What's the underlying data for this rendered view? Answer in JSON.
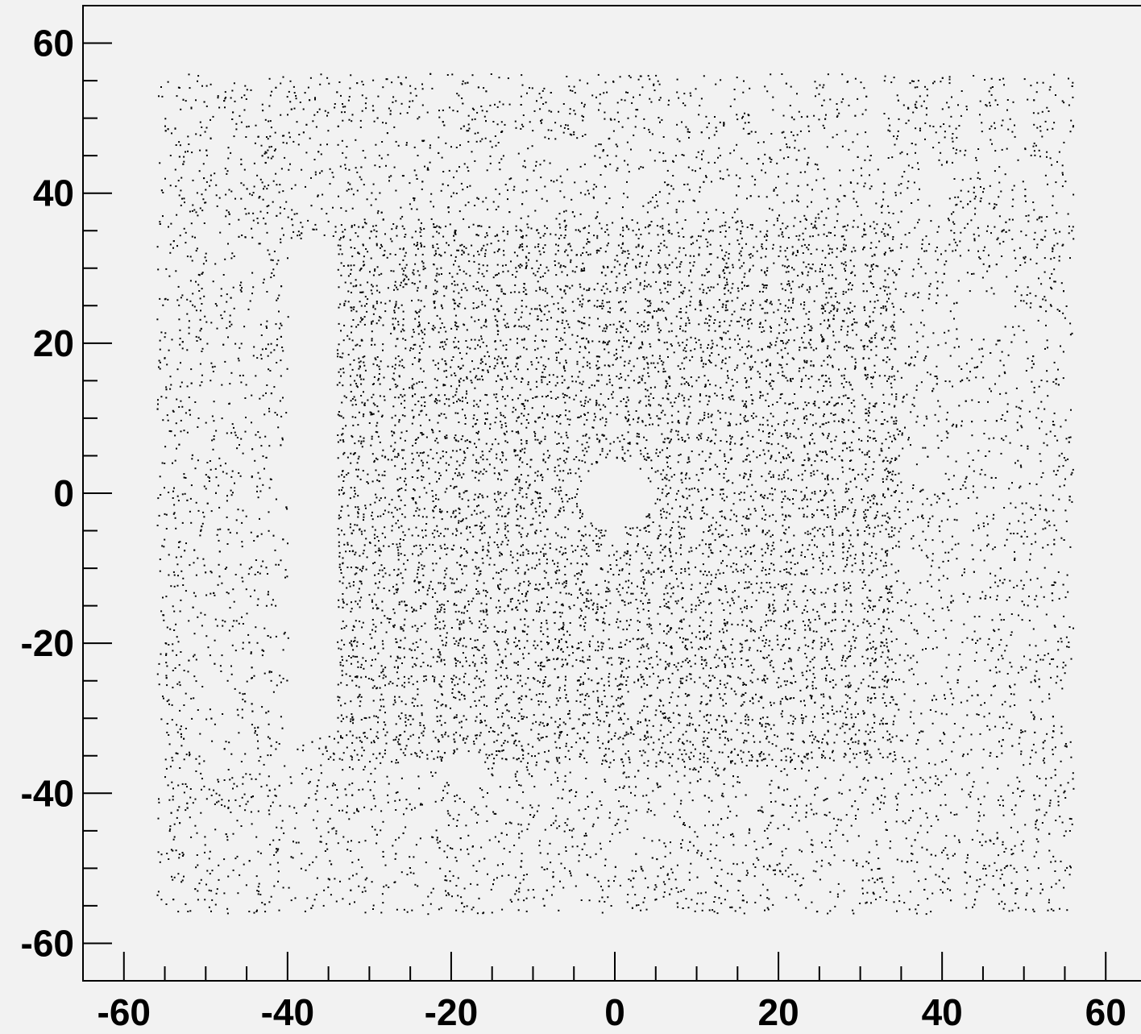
{
  "chart_data": {
    "type": "scatter",
    "title": "",
    "xlabel": "",
    "ylabel": "",
    "xlim": [
      -65,
      65
    ],
    "ylim": [
      -65,
      65
    ],
    "x_ticks": [
      -60,
      -40,
      -20,
      0,
      20,
      40,
      60
    ],
    "y_ticks": [
      -60,
      -40,
      -20,
      0,
      20,
      40,
      60
    ],
    "x_tick_labels": [
      "-60",
      "-40",
      "-20",
      "0",
      "20",
      "40",
      "60"
    ],
    "y_tick_labels": [
      "-60",
      "-40",
      "-20",
      "0",
      "20",
      "40",
      "60"
    ],
    "minor_tick_step": 5,
    "grid": false,
    "legend": "none",
    "marker_color": "#000000",
    "background_color": "#f2f2f2",
    "regions": {
      "outer_band": {
        "x": [
          -56,
          56
        ],
        "y": [
          -56,
          56
        ],
        "relative_density": 0.22
      },
      "dense_grid_core": {
        "x": [
          -34,
          34
        ],
        "y": [
          -35,
          35
        ],
        "relative_density": 1.0,
        "grid_pitch": 2.5
      },
      "gap_vertical_strip": {
        "x": [
          -40,
          -34
        ],
        "y": [
          -32,
          34
        ]
      },
      "gap_center_hole": {
        "center": [
          0,
          0
        ],
        "radius": 4.5
      },
      "gap_small_holes": [
        {
          "center": [
            44.5,
            24
          ],
          "radius": 3
        },
        {
          "center": [
            -18.5,
            -37
          ],
          "radius": 2.5
        }
      ]
    }
  }
}
